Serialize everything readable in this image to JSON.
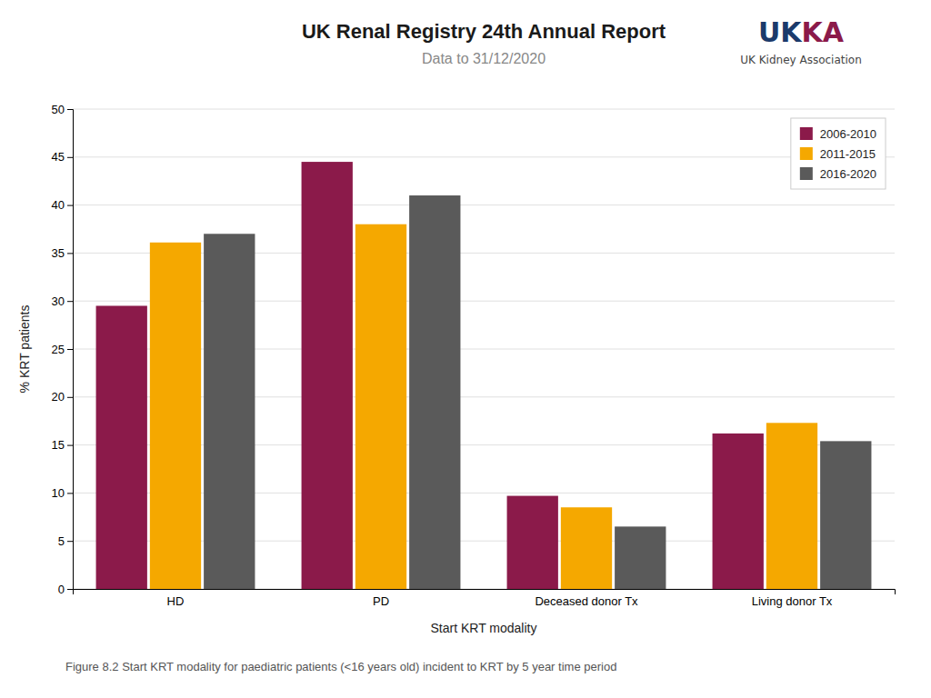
{
  "chart_data": {
    "type": "bar",
    "title": "UK Renal Registry 24th Annual Report",
    "subtitle": "Data to 31/12/2020",
    "xlabel": "Start KRT modality",
    "ylabel": "% KRT patients",
    "categories": [
      "HD",
      "PD",
      "Deceased donor Tx",
      "Living donor Tx"
    ],
    "series": [
      {
        "name": "2006-2010",
        "color": "#8B1A4A",
        "values": [
          29.5,
          44.5,
          9.7,
          16.2
        ]
      },
      {
        "name": "2011-2015",
        "color": "#F5A800",
        "values": [
          36.1,
          38.0,
          8.5,
          17.3
        ]
      },
      {
        "name": "2016-2020",
        "color": "#5A5A5A",
        "values": [
          37.0,
          41.0,
          6.5,
          15.4
        ]
      }
    ],
    "ylim": [
      0,
      50
    ],
    "yticks": [
      0,
      5,
      10,
      15,
      20,
      25,
      30,
      35,
      40,
      45,
      50
    ],
    "grid": true,
    "legend": "upper right",
    "caption": "Figure 8.2 Start KRT modality for paediatric patients (<16 years old) incident to KRT by 5 year time period",
    "annotations": [
      {
        "text": "UK",
        "color": "#1B3A6B"
      },
      {
        "text": "KA",
        "color": "#8B1A4A"
      },
      {
        "text": "UK Kidney Association"
      }
    ]
  }
}
